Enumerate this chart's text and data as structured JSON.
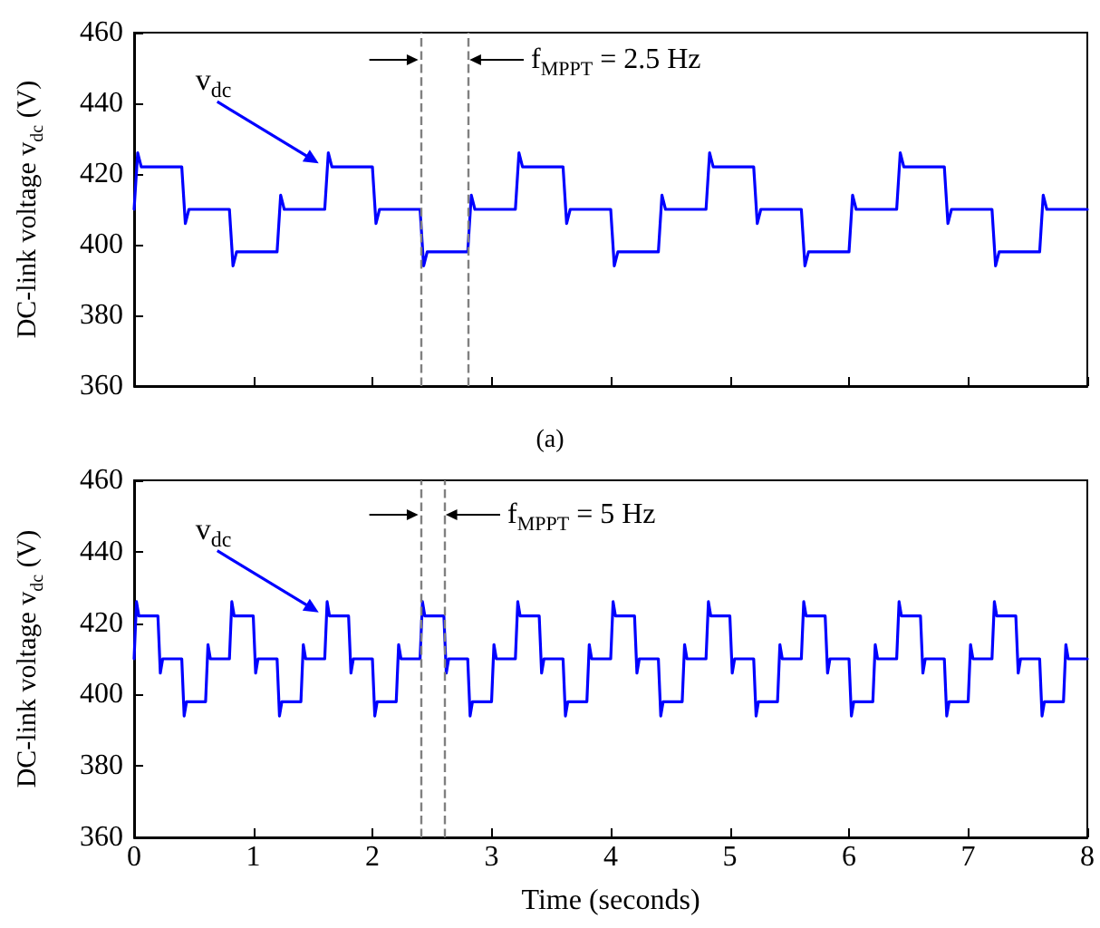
{
  "chart_data": [
    {
      "type": "line",
      "ylabel": "DC-link voltage v$_{dc}$ (V)",
      "xlim": [
        0,
        8
      ],
      "xticks": [
        0,
        1,
        2,
        3,
        4,
        5,
        6,
        7,
        8
      ],
      "ylim": [
        360,
        460
      ],
      "yticks": [
        360,
        380,
        400,
        420,
        440,
        460
      ],
      "tick_labels": "y",
      "annotations": [
        {
          "text": "v$_{dc}$",
          "x": 1.58,
          "y": 422
        },
        "f$_{MPPT}$ = 2.5 Hz",
        "(a)"
      ],
      "ref_lines": [
        {
          "axis": "x",
          "value": 2.4,
          "color": "#808080",
          "line_style": "dashed"
        },
        {
          "axis": "x",
          "value": 2.8,
          "color": "#808080",
          "line_style": "dashed"
        }
      ],
      "series": [
        {
          "color": "#0000ff",
          "x": [
            0,
            0.03,
            0.06,
            0.4,
            0.43,
            0.46,
            0.8,
            0.83,
            0.86,
            1.2,
            1.23,
            1.26,
            1.6,
            1.63,
            1.66,
            2.0,
            2.03,
            2.06,
            2.4,
            2.43,
            2.46,
            2.8,
            2.83,
            2.86,
            3.2,
            3.23,
            3.26,
            3.6,
            3.63,
            3.66,
            4.0,
            4.03,
            4.06,
            4.4,
            4.43,
            4.46,
            4.8,
            4.83,
            4.86,
            5.2,
            5.23,
            5.26,
            5.6,
            5.63,
            5.66,
            6.0,
            6.03,
            6.06,
            6.4,
            6.43,
            6.46,
            6.8,
            6.83,
            6.86,
            7.2,
            7.23,
            7.26,
            7.6,
            7.63,
            7.66,
            8.0
          ],
          "values": [
            410,
            426,
            422,
            422,
            406,
            410,
            410,
            394,
            398,
            398,
            414,
            410,
            410,
            426,
            422,
            422,
            406,
            410,
            410,
            394,
            398,
            398,
            414,
            410,
            410,
            426,
            422,
            422,
            406,
            410,
            410,
            394,
            398,
            398,
            414,
            410,
            410,
            426,
            422,
            422,
            406,
            410,
            410,
            394,
            398,
            398,
            414,
            410,
            410,
            426,
            422,
            422,
            406,
            410,
            410,
            394,
            398,
            398,
            414,
            410,
            410
          ]
        }
      ]
    },
    {
      "type": "line",
      "xlabel": "Time (seconds)",
      "ylabel": "DC-link voltage v$_{dc}$ (V)",
      "xlim": [
        0,
        8
      ],
      "xticks": [
        0,
        1,
        2,
        3,
        4,
        5,
        6,
        7,
        8
      ],
      "ylim": [
        360,
        460
      ],
      "yticks": [
        360,
        380,
        400,
        420,
        440,
        460
      ],
      "annotations": [
        {
          "text": "v$_{dc}$",
          "x": 1.58,
          "y": 422
        },
        "f$_{MPPT}$ = 5 Hz"
      ],
      "ref_lines": [
        {
          "axis": "x",
          "value": 2.4,
          "color": "#808080",
          "line_style": "dashed"
        },
        {
          "axis": "x",
          "value": 2.6,
          "color": "#808080",
          "line_style": "dashed"
        }
      ],
      "series": [
        {
          "color": "#0000ff",
          "x": [
            0,
            0.02,
            0.04,
            0.2,
            0.22,
            0.24,
            0.4,
            0.42,
            0.44,
            0.6,
            0.62,
            0.64,
            0.8,
            0.82,
            0.84,
            1.0,
            1.02,
            1.04,
            1.2,
            1.22,
            1.24,
            1.4,
            1.42,
            1.44,
            1.6,
            1.62,
            1.64,
            1.8,
            1.82,
            1.84,
            2.0,
            2.02,
            2.04,
            2.2,
            2.22,
            2.24,
            2.4,
            2.42,
            2.44,
            2.6,
            2.62,
            2.64,
            2.8,
            2.82,
            2.84,
            3.0,
            3.02,
            3.04,
            3.2,
            3.22,
            3.24,
            3.4,
            3.42,
            3.44,
            3.6,
            3.62,
            3.64,
            3.8,
            3.82,
            3.84,
            4.0,
            4.02,
            4.04,
            4.2,
            4.22,
            4.24,
            4.4,
            4.42,
            4.44,
            4.6,
            4.62,
            4.64,
            4.8,
            4.82,
            4.84,
            5.0,
            5.02,
            5.04,
            5.2,
            5.22,
            5.24,
            5.4,
            5.42,
            5.44,
            5.6,
            5.62,
            5.64,
            5.8,
            5.82,
            5.84,
            6.0,
            6.02,
            6.04,
            6.2,
            6.22,
            6.24,
            6.4,
            6.42,
            6.44,
            6.6,
            6.62,
            6.64,
            6.8,
            6.82,
            6.84,
            7.0,
            7.02,
            7.04,
            7.2,
            7.22,
            7.24,
            7.4,
            7.42,
            7.44,
            7.6,
            7.62,
            7.64,
            7.8,
            7.82,
            7.84,
            8.0
          ],
          "values": [
            410,
            426,
            422,
            422,
            406,
            410,
            410,
            394,
            398,
            398,
            414,
            410,
            410,
            426,
            422,
            422,
            406,
            410,
            410,
            394,
            398,
            398,
            414,
            410,
            410,
            426,
            422,
            422,
            406,
            410,
            410,
            394,
            398,
            398,
            414,
            410,
            410,
            426,
            422,
            422,
            406,
            410,
            410,
            394,
            398,
            398,
            414,
            410,
            410,
            426,
            422,
            422,
            406,
            410,
            410,
            394,
            398,
            398,
            414,
            410,
            410,
            426,
            422,
            422,
            406,
            410,
            410,
            394,
            398,
            398,
            414,
            410,
            410,
            426,
            422,
            422,
            406,
            410,
            410,
            394,
            398,
            398,
            414,
            410,
            410,
            426,
            422,
            422,
            406,
            410,
            410,
            394,
            398,
            398,
            414,
            410,
            410,
            426,
            422,
            422,
            406,
            410,
            410,
            394,
            398,
            398,
            414,
            410,
            410,
            426,
            422,
            422,
            406,
            410,
            410,
            394,
            398,
            398,
            414,
            410,
            410
          ]
        }
      ]
    }
  ]
}
